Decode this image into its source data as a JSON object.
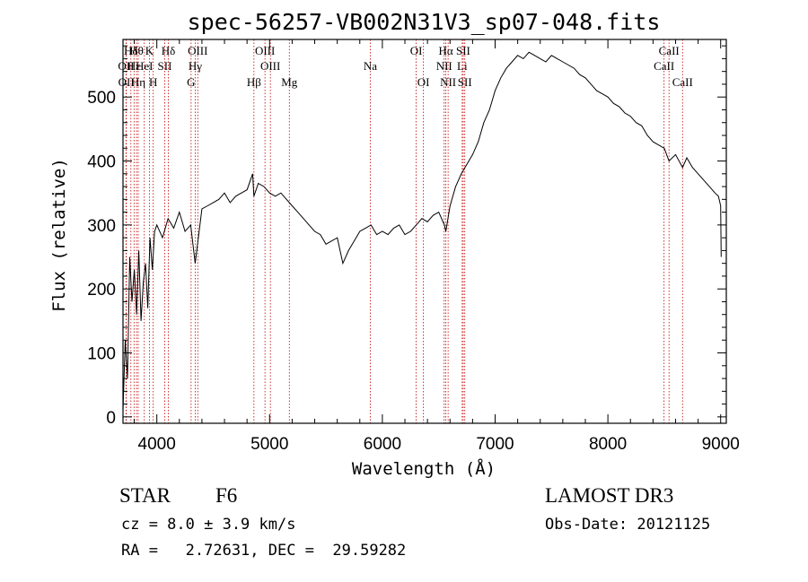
{
  "chart_data": {
    "type": "line",
    "title": "spec-56257-VB002N31V3_sp07-048.fits",
    "xlabel": "Wavelength (Å)",
    "ylabel": "Flux (relative)",
    "xlim": [
      3700,
      9050
    ],
    "ylim": [
      -10,
      590
    ],
    "x_ticks": [
      4000,
      5000,
      6000,
      7000,
      8000,
      9000
    ],
    "y_ticks": [
      0,
      100,
      200,
      300,
      400,
      500
    ],
    "series": [
      {
        "name": "flux",
        "x": [
          3700,
          3720,
          3740,
          3760,
          3780,
          3800,
          3820,
          3840,
          3860,
          3880,
          3900,
          3920,
          3940,
          3960,
          3980,
          4000,
          4050,
          4100,
          4150,
          4200,
          4250,
          4300,
          4340,
          4400,
          4450,
          4500,
          4550,
          4600,
          4650,
          4700,
          4750,
          4800,
          4850,
          4861,
          4900,
          4950,
          5000,
          5050,
          5100,
          5150,
          5200,
          5250,
          5300,
          5350,
          5400,
          5450,
          5500,
          5550,
          5600,
          5650,
          5700,
          5750,
          5800,
          5850,
          5900,
          5950,
          6000,
          6050,
          6100,
          6150,
          6200,
          6250,
          6300,
          6350,
          6400,
          6450,
          6500,
          6550,
          6563,
          6600,
          6650,
          6700,
          6750,
          6800,
          6850,
          6900,
          6950,
          7000,
          7050,
          7100,
          7150,
          7200,
          7250,
          7300,
          7350,
          7400,
          7450,
          7500,
          7550,
          7600,
          7650,
          7700,
          7750,
          7800,
          7850,
          7900,
          7950,
          8000,
          8050,
          8100,
          8150,
          8200,
          8250,
          8300,
          8350,
          8400,
          8450,
          8500,
          8542,
          8600,
          8662,
          8700,
          8750,
          8800,
          8850,
          8900,
          8950,
          8980,
          9000,
          9005
        ],
        "values": [
          10,
          120,
          60,
          250,
          180,
          230,
          160,
          260,
          150,
          210,
          240,
          170,
          280,
          230,
          290,
          300,
          280,
          310,
          295,
          320,
          290,
          300,
          240,
          325,
          330,
          335,
          340,
          350,
          335,
          345,
          350,
          355,
          380,
          345,
          365,
          360,
          350,
          345,
          350,
          340,
          330,
          320,
          310,
          300,
          290,
          285,
          270,
          275,
          280,
          240,
          260,
          275,
          290,
          295,
          300,
          285,
          290,
          285,
          295,
          300,
          285,
          290,
          300,
          310,
          305,
          315,
          320,
          300,
          290,
          330,
          360,
          380,
          395,
          410,
          430,
          460,
          480,
          510,
          530,
          545,
          555,
          565,
          560,
          570,
          565,
          560,
          555,
          565,
          560,
          555,
          550,
          545,
          535,
          530,
          520,
          510,
          505,
          500,
          490,
          485,
          475,
          470,
          460,
          455,
          440,
          430,
          425,
          420,
          400,
          410,
          390,
          405,
          390,
          380,
          370,
          360,
          350,
          345,
          330,
          250
        ]
      }
    ],
    "spectral_lines": [
      {
        "label": "Hδ",
        "wavelength": 3770,
        "row": 1
      },
      {
        "label": "OII",
        "wavelength": 3727,
        "row": 2
      },
      {
        "label": "OII",
        "wavelength": 3729,
        "row": 3
      },
      {
        "label": "Hε",
        "wavelength": 3798,
        "row": 2
      },
      {
        "label": "Hη",
        "wavelength": 3835,
        "row": 3
      },
      {
        "label": "Hθ",
        "wavelength": 3820,
        "row": 1
      },
      {
        "label": "K",
        "wavelength": 3934,
        "row": 1
      },
      {
        "label": "HeI",
        "wavelength": 3889,
        "row": 2
      },
      {
        "label": "H",
        "wavelength": 3968,
        "row": 3
      },
      {
        "label": "SII",
        "wavelength": 4070,
        "row": 2
      },
      {
        "label": "Hδ",
        "wavelength": 4102,
        "row": 1
      },
      {
        "label": "OIII",
        "wavelength": 4363,
        "row": 1
      },
      {
        "label": "Hγ",
        "wavelength": 4340,
        "row": 2
      },
      {
        "label": "G",
        "wavelength": 4304,
        "row": 3
      },
      {
        "label": "Hβ",
        "wavelength": 4861,
        "row": 3
      },
      {
        "label": "OIII",
        "wavelength": 4959,
        "row": 1
      },
      {
        "label": "OIII",
        "wavelength": 5007,
        "row": 2
      },
      {
        "label": "Mg",
        "wavelength": 5175,
        "row": 3
      },
      {
        "label": "Na",
        "wavelength": 5893,
        "row": 2
      },
      {
        "label": "OI",
        "wavelength": 6300,
        "row": 1
      },
      {
        "label": "OI",
        "wavelength": 6364,
        "row": 3
      },
      {
        "label": "Hα",
        "wavelength": 6563,
        "row": 1
      },
      {
        "label": "NII",
        "wavelength": 6548,
        "row": 2
      },
      {
        "label": "NII",
        "wavelength": 6583,
        "row": 3
      },
      {
        "label": "SII",
        "wavelength": 6717,
        "row": 1
      },
      {
        "label": "Li",
        "wavelength": 6708,
        "row": 2
      },
      {
        "label": "SII",
        "wavelength": 6731,
        "row": 3
      },
      {
        "label": "CaII",
        "wavelength": 8542,
        "row": 1
      },
      {
        "label": "CaII",
        "wavelength": 8498,
        "row": 2
      },
      {
        "label": "CaII",
        "wavelength": 8662,
        "row": 3
      }
    ]
  },
  "info": {
    "class_label": "STAR",
    "subclass": "F6",
    "survey": "LAMOST DR3",
    "cz": "cz = 8.0 ± 3.9 km/s",
    "obs_date": "Obs-Date: 20121125",
    "radec": "RA =   2.72631, DEC =  29.59282"
  },
  "colors": {
    "line": "#000000",
    "marker_lines": "#c00000",
    "frame": "#000000"
  }
}
